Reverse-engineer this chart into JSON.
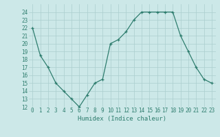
{
  "x": [
    0,
    1,
    2,
    3,
    4,
    5,
    6,
    7,
    8,
    9,
    10,
    11,
    12,
    13,
    14,
    15,
    16,
    17,
    18,
    19,
    20,
    21,
    22,
    23
  ],
  "y": [
    22,
    18.5,
    17,
    15,
    14,
    13,
    12,
    13.5,
    15,
    15.5,
    20,
    20.5,
    21.5,
    23,
    24,
    24,
    24,
    24,
    24,
    21,
    19,
    17,
    15.5,
    15
  ],
  "xlabel": "Humidex (Indice chaleur)",
  "ylim": [
    12,
    25
  ],
  "xlim": [
    -0.5,
    23.5
  ],
  "yticks": [
    12,
    13,
    14,
    15,
    16,
    17,
    18,
    19,
    20,
    21,
    22,
    23,
    24
  ],
  "xticks": [
    0,
    1,
    2,
    3,
    4,
    5,
    6,
    7,
    8,
    9,
    10,
    11,
    12,
    13,
    14,
    15,
    16,
    17,
    18,
    19,
    20,
    21,
    22,
    23
  ],
  "xtick_labels": [
    "0",
    "1",
    "2",
    "3",
    "4",
    "5",
    "6",
    "7",
    "8",
    "9",
    "10",
    "11",
    "12",
    "13",
    "14",
    "15",
    "16",
    "17",
    "18",
    "19",
    "20",
    "21",
    "22",
    "23"
  ],
  "line_color": "#2e7d6e",
  "marker": "+",
  "bg_color": "#cce8e8",
  "grid_color": "#aacece",
  "tick_color": "#2e7d6e",
  "label_color": "#2e7d6e",
  "tick_fontsize": 5.5,
  "xlabel_fontsize": 6.5
}
